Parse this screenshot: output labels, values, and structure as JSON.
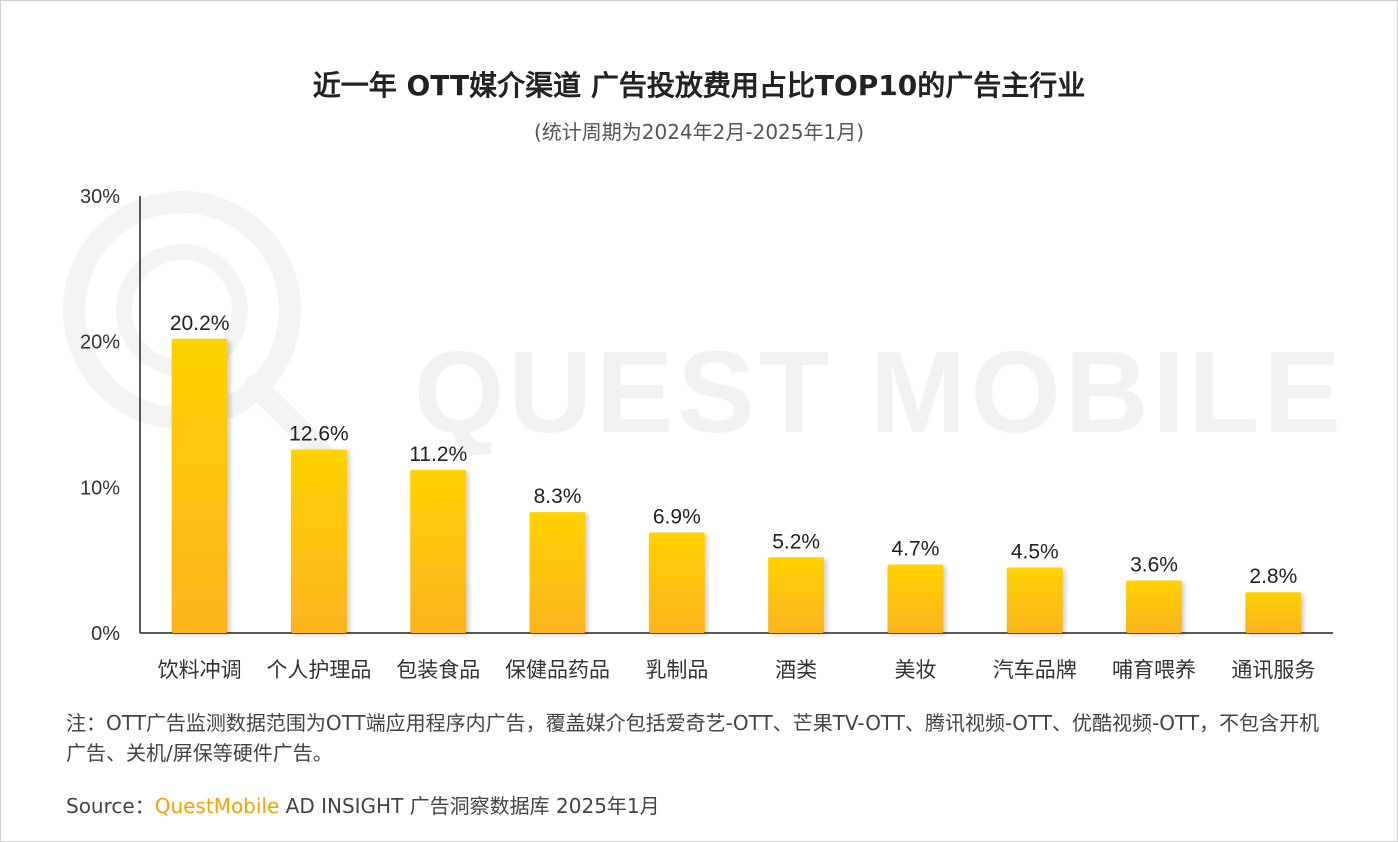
{
  "title": "近一年 OTT媒介渠道 广告投放费用占比TOP10的广告主行业",
  "subtitle": "(统计周期为2024年2月-2025年1月)",
  "watermark": "QUEST MOBILE",
  "note": "注：OTT广告监测数据范围为OTT端应用程序内广告，覆盖媒介包括爱奇艺-OTT、芒果TV-OTT、腾讯视频-OTT、优酷视频-OTT，不包含开机广告、关机/屏保等硬件广告。",
  "source": {
    "prefix": "Source：",
    "brand": "QuestMobile",
    "suffix": " AD INSIGHT 广告洞察数据库 2025年1月"
  },
  "colors": {
    "bar_top": "#ffd200",
    "bar_bottom": "#fbb41f",
    "axis": "#222222",
    "brand": "#f5a300"
  },
  "chart_data": {
    "type": "bar",
    "categories": [
      "饮料冲调",
      "个人护理品",
      "包装食品",
      "保健品药品",
      "乳制品",
      "酒类",
      "美妆",
      "汽车品牌",
      "哺育喂养",
      "通讯服务"
    ],
    "values": [
      20.2,
      12.6,
      11.2,
      8.3,
      6.9,
      5.2,
      4.7,
      4.5,
      3.6,
      2.8
    ],
    "data_labels": [
      "20.2%",
      "12.6%",
      "11.2%",
      "8.3%",
      "6.9%",
      "5.2%",
      "4.7%",
      "4.5%",
      "3.6%",
      "2.8%"
    ],
    "yticks": [
      0,
      10,
      20,
      30
    ],
    "ytick_labels": [
      "0%",
      "10%",
      "20%",
      "30%"
    ],
    "ylim": [
      0,
      30
    ],
    "title": "近一年 OTT媒介渠道 广告投放费用占比TOP10的广告主行业",
    "xlabel": "",
    "ylabel": "",
    "grid": false,
    "legend": "none"
  }
}
